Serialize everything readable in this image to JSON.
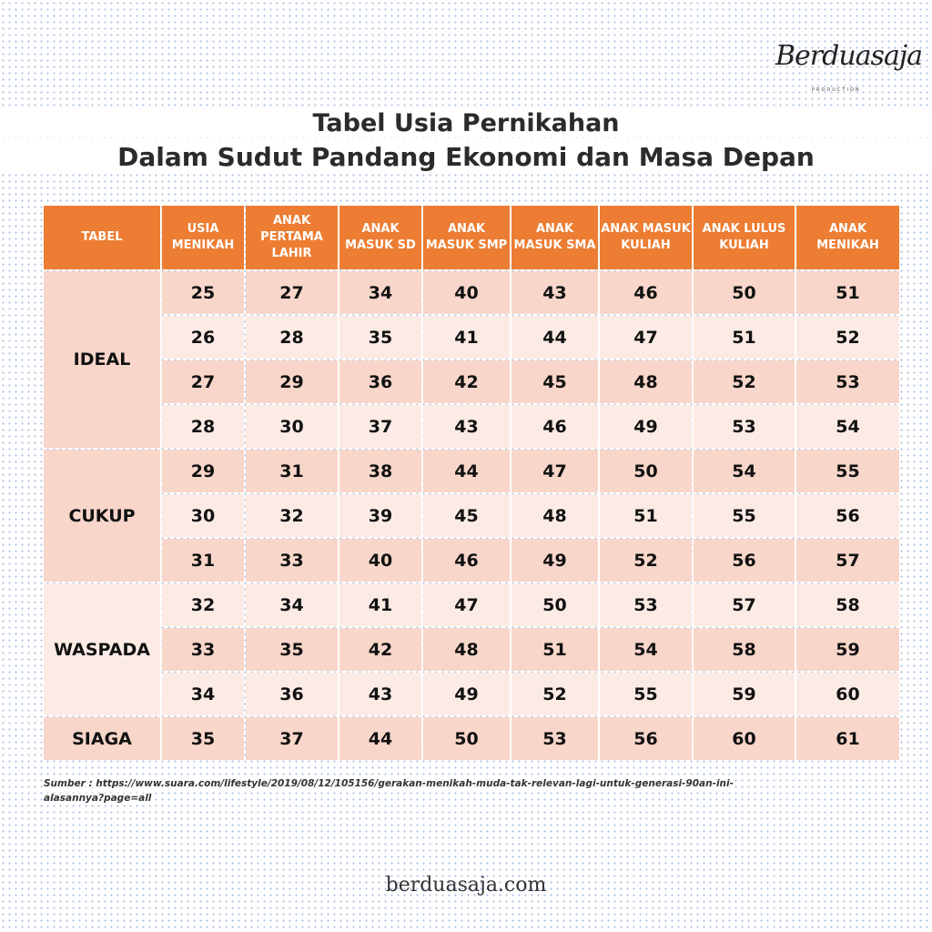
{
  "logo": {
    "text": "Berduasaja",
    "sub": "PRODUCTION"
  },
  "title": {
    "line1": "Tabel Usia Pernikahan",
    "line2": "Dalam Sudut Pandang Ekonomi dan Masa Depan"
  },
  "table": {
    "headers": [
      "TABEL",
      "USIA MENIKAH",
      "ANAK PERTAMA LAHIR",
      "ANAK MASUK SD",
      "ANAK MASUK SMP",
      "ANAK MASUK SMA",
      "ANAK MASUK KULIAH",
      "ANAK LULUS KULIAH",
      "ANAK MENIKAH"
    ],
    "groups": [
      {
        "label": "IDEAL",
        "rows": [
          [
            "25",
            "27",
            "34",
            "40",
            "43",
            "46",
            "50",
            "51"
          ],
          [
            "26",
            "28",
            "35",
            "41",
            "44",
            "47",
            "51",
            "52"
          ],
          [
            "27",
            "29",
            "36",
            "42",
            "45",
            "48",
            "52",
            "53"
          ],
          [
            "28",
            "30",
            "37",
            "43",
            "46",
            "49",
            "53",
            "54"
          ]
        ]
      },
      {
        "label": "CUKUP",
        "rows": [
          [
            "29",
            "31",
            "38",
            "44",
            "47",
            "50",
            "54",
            "55"
          ],
          [
            "30",
            "32",
            "39",
            "45",
            "48",
            "51",
            "55",
            "56"
          ],
          [
            "31",
            "33",
            "40",
            "46",
            "49",
            "52",
            "56",
            "57"
          ]
        ]
      },
      {
        "label": "WASPADA",
        "rows": [
          [
            "32",
            "34",
            "41",
            "47",
            "50",
            "53",
            "57",
            "58"
          ],
          [
            "33",
            "35",
            "42",
            "48",
            "51",
            "54",
            "58",
            "59"
          ],
          [
            "34",
            "36",
            "43",
            "49",
            "52",
            "55",
            "59",
            "60"
          ]
        ]
      },
      {
        "label": "SIAGA",
        "rows": [
          [
            "35",
            "37",
            "44",
            "50",
            "53",
            "56",
            "60",
            "61"
          ]
        ]
      }
    ]
  },
  "colors": {
    "header": "#ec7d33",
    "row_dark": "#f8d6ca",
    "row_light": "#fcebe5"
  },
  "source": "Sumber :  https://www.suara.com/lifestyle/2019/08/12/105156/gerakan-menikah-muda-tak-relevan-lagi-untuk-generasi-90an-ini-alasannya?page=all",
  "footer": {
    "site": "berduasaja.com"
  }
}
